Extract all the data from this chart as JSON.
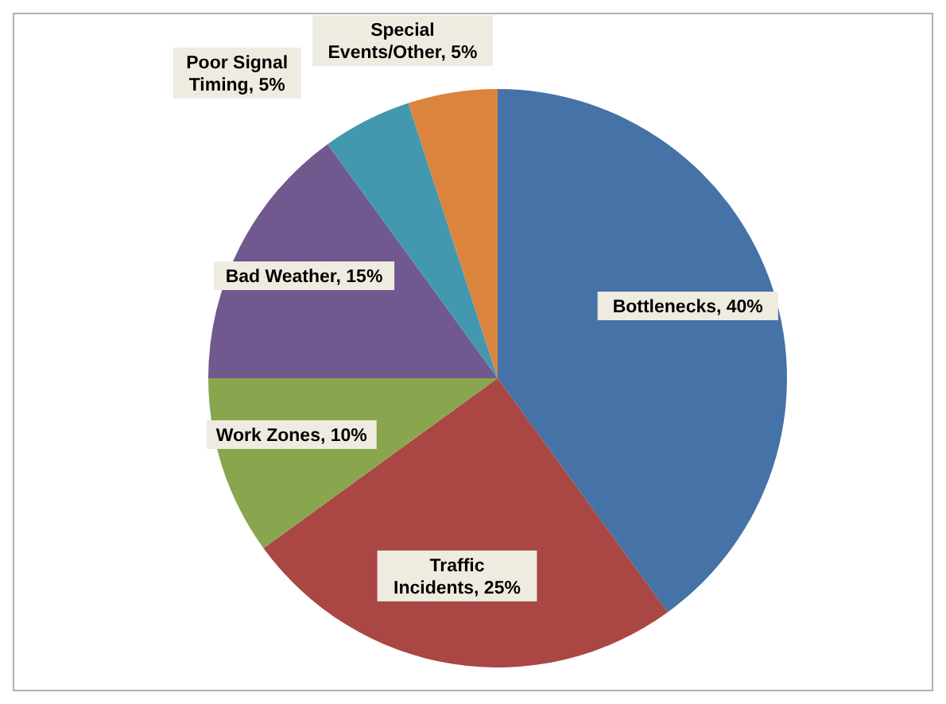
{
  "chart_data": {
    "type": "pie",
    "categories": [
      "Bottlenecks",
      "Traffic Incidents",
      "Work Zones",
      "Bad Weather",
      "Poor Signal Timing",
      "Special Events/Other"
    ],
    "values": [
      40,
      25,
      10,
      15,
      5,
      5
    ],
    "value_labels": [
      "40%",
      "25%",
      "10%",
      "15%",
      "5%",
      "5%"
    ],
    "colors": [
      "#4572a7",
      "#aa4643",
      "#89a54e",
      "#71588f",
      "#4198af",
      "#db843d"
    ],
    "legend": false
  }
}
